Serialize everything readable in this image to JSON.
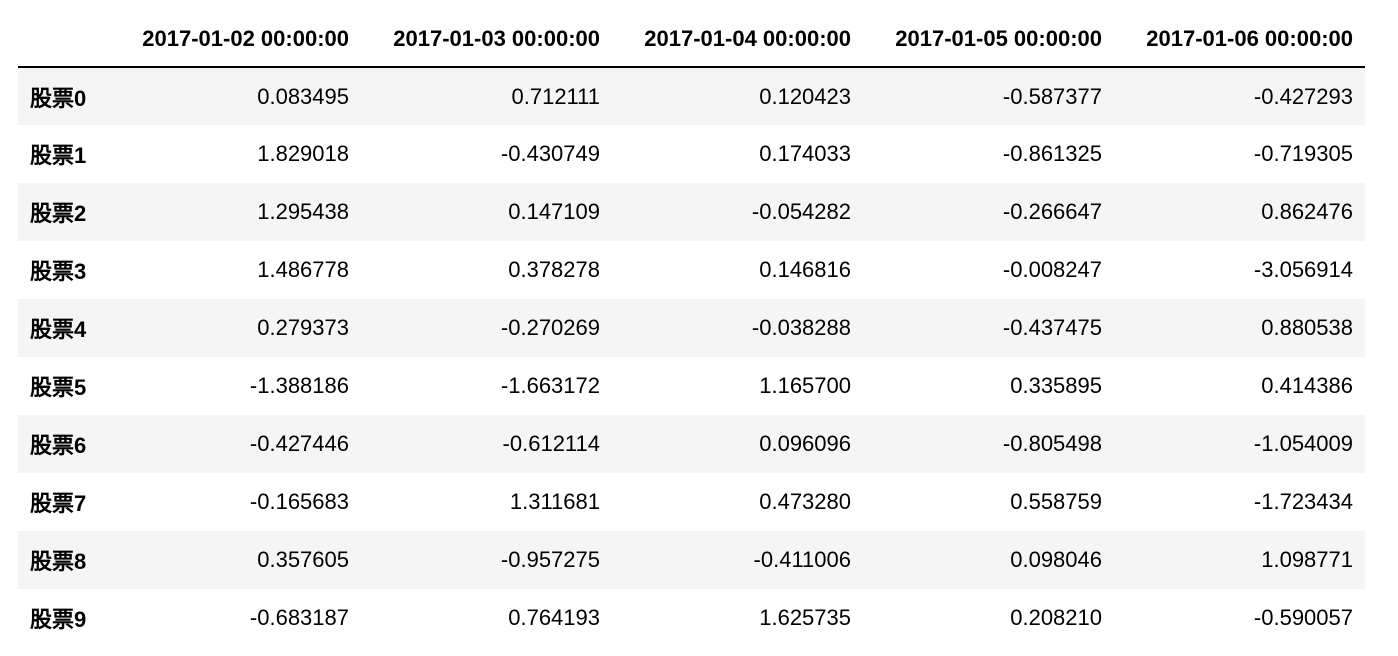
{
  "table": {
    "columns": [
      "2017-01-02 00:00:00",
      "2017-01-03 00:00:00",
      "2017-01-04 00:00:00",
      "2017-01-05 00:00:00",
      "2017-01-06 00:00:00"
    ],
    "rows": [
      {
        "index": "股票0",
        "values": [
          "0.083495",
          "0.712111",
          "0.120423",
          "-0.587377",
          "-0.427293"
        ]
      },
      {
        "index": "股票1",
        "values": [
          "1.829018",
          "-0.430749",
          "0.174033",
          "-0.861325",
          "-0.719305"
        ]
      },
      {
        "index": "股票2",
        "values": [
          "1.295438",
          "0.147109",
          "-0.054282",
          "-0.266647",
          "0.862476"
        ]
      },
      {
        "index": "股票3",
        "values": [
          "1.486778",
          "0.378278",
          "0.146816",
          "-0.008247",
          "-3.056914"
        ]
      },
      {
        "index": "股票4",
        "values": [
          "0.279373",
          "-0.270269",
          "-0.038288",
          "-0.437475",
          "0.880538"
        ]
      },
      {
        "index": "股票5",
        "values": [
          "-1.388186",
          "-1.663172",
          "1.165700",
          "0.335895",
          "0.414386"
        ]
      },
      {
        "index": "股票6",
        "values": [
          "-0.427446",
          "-0.612114",
          "0.096096",
          "-0.805498",
          "-1.054009"
        ]
      },
      {
        "index": "股票7",
        "values": [
          "-0.165683",
          "1.311681",
          "0.473280",
          "0.558759",
          "-1.723434"
        ]
      },
      {
        "index": "股票8",
        "values": [
          "0.357605",
          "-0.957275",
          "-0.411006",
          "0.098046",
          "1.098771"
        ]
      },
      {
        "index": "股票9",
        "values": [
          "-0.683187",
          "0.764193",
          "1.625735",
          "0.208210",
          "-0.590057"
        ]
      }
    ]
  },
  "colors": {
    "stripe": "#f5f5f5",
    "header_rule": "#000000",
    "text": "#000000"
  }
}
